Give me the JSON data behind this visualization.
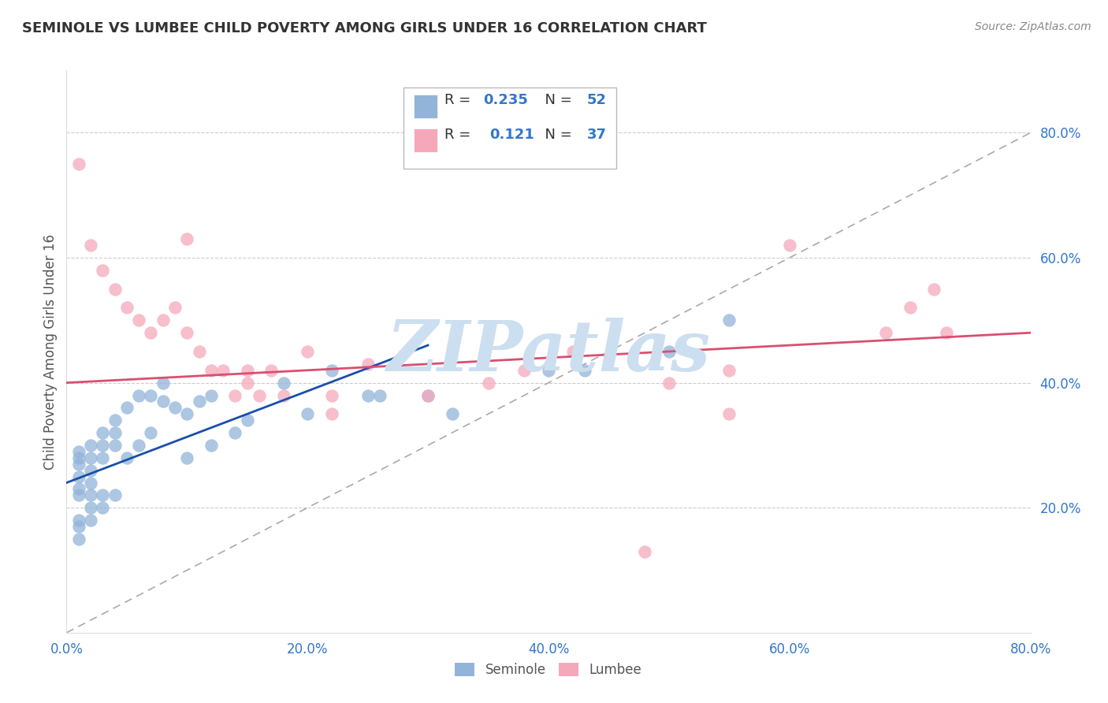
{
  "title": "SEMINOLE VS LUMBEE CHILD POVERTY AMONG GIRLS UNDER 16 CORRELATION CHART",
  "source": "Source: ZipAtlas.com",
  "ylabel": "Child Poverty Among Girls Under 16",
  "xlim": [
    0,
    0.8
  ],
  "ylim": [
    0,
    0.9
  ],
  "xticks": [
    0.0,
    0.2,
    0.4,
    0.6,
    0.8
  ],
  "yticks": [
    0.2,
    0.4,
    0.6,
    0.8
  ],
  "xticklabels": [
    "0.0%",
    "20.0%",
    "40.0%",
    "60.0%",
    "80.0%"
  ],
  "yticklabels": [
    "20.0%",
    "40.0%",
    "60.0%",
    "80.0%"
  ],
  "seminole_color": "#92b4d9",
  "lumbee_color": "#f5a8ba",
  "seminole_R": 0.235,
  "seminole_N": 52,
  "lumbee_R": 0.121,
  "lumbee_N": 37,
  "watermark": "ZIPatlas",
  "watermark_color": "#ccdff0",
  "grid_color": "#cccccc",
  "background_color": "#ffffff",
  "trend_blue": "#1a4faa",
  "trend_pink": "#d94f70",
  "ref_line_color": "#aaaaaa",
  "tick_color": "#3377cc",
  "seminole_x": [
    0.01,
    0.01,
    0.01,
    0.01,
    0.01,
    0.01,
    0.01,
    0.01,
    0.01,
    0.02,
    0.02,
    0.02,
    0.02,
    0.02,
    0.02,
    0.02,
    0.03,
    0.03,
    0.03,
    0.03,
    0.03,
    0.04,
    0.04,
    0.04,
    0.04,
    0.05,
    0.05,
    0.06,
    0.06,
    0.07,
    0.07,
    0.08,
    0.08,
    0.09,
    0.1,
    0.1,
    0.11,
    0.12,
    0.12,
    0.14,
    0.15,
    0.18,
    0.2,
    0.22,
    0.25,
    0.26,
    0.3,
    0.32,
    0.4,
    0.43,
    0.5,
    0.55
  ],
  "seminole_y": [
    0.25,
    0.27,
    0.28,
    0.29,
    0.22,
    0.23,
    0.18,
    0.17,
    0.15,
    0.24,
    0.26,
    0.28,
    0.3,
    0.22,
    0.2,
    0.18,
    0.28,
    0.3,
    0.32,
    0.22,
    0.2,
    0.3,
    0.32,
    0.34,
    0.22,
    0.36,
    0.28,
    0.38,
    0.3,
    0.38,
    0.32,
    0.37,
    0.4,
    0.36,
    0.35,
    0.28,
    0.37,
    0.38,
    0.3,
    0.32,
    0.34,
    0.4,
    0.35,
    0.42,
    0.38,
    0.38,
    0.38,
    0.35,
    0.42,
    0.42,
    0.45,
    0.5
  ],
  "lumbee_x": [
    0.01,
    0.02,
    0.03,
    0.04,
    0.05,
    0.06,
    0.07,
    0.08,
    0.09,
    0.1,
    0.11,
    0.12,
    0.13,
    0.14,
    0.15,
    0.15,
    0.16,
    0.17,
    0.18,
    0.2,
    0.22,
    0.22,
    0.25,
    0.5,
    0.55,
    0.6,
    0.68,
    0.7,
    0.72,
    0.73,
    0.48,
    0.55,
    0.3,
    0.35,
    0.38,
    0.42,
    0.1
  ],
  "lumbee_y": [
    0.75,
    0.62,
    0.58,
    0.55,
    0.52,
    0.5,
    0.48,
    0.5,
    0.52,
    0.48,
    0.45,
    0.42,
    0.42,
    0.38,
    0.42,
    0.4,
    0.38,
    0.42,
    0.38,
    0.45,
    0.38,
    0.35,
    0.43,
    0.4,
    0.42,
    0.62,
    0.48,
    0.52,
    0.55,
    0.48,
    0.13,
    0.35,
    0.38,
    0.4,
    0.42,
    0.45,
    0.63
  ]
}
